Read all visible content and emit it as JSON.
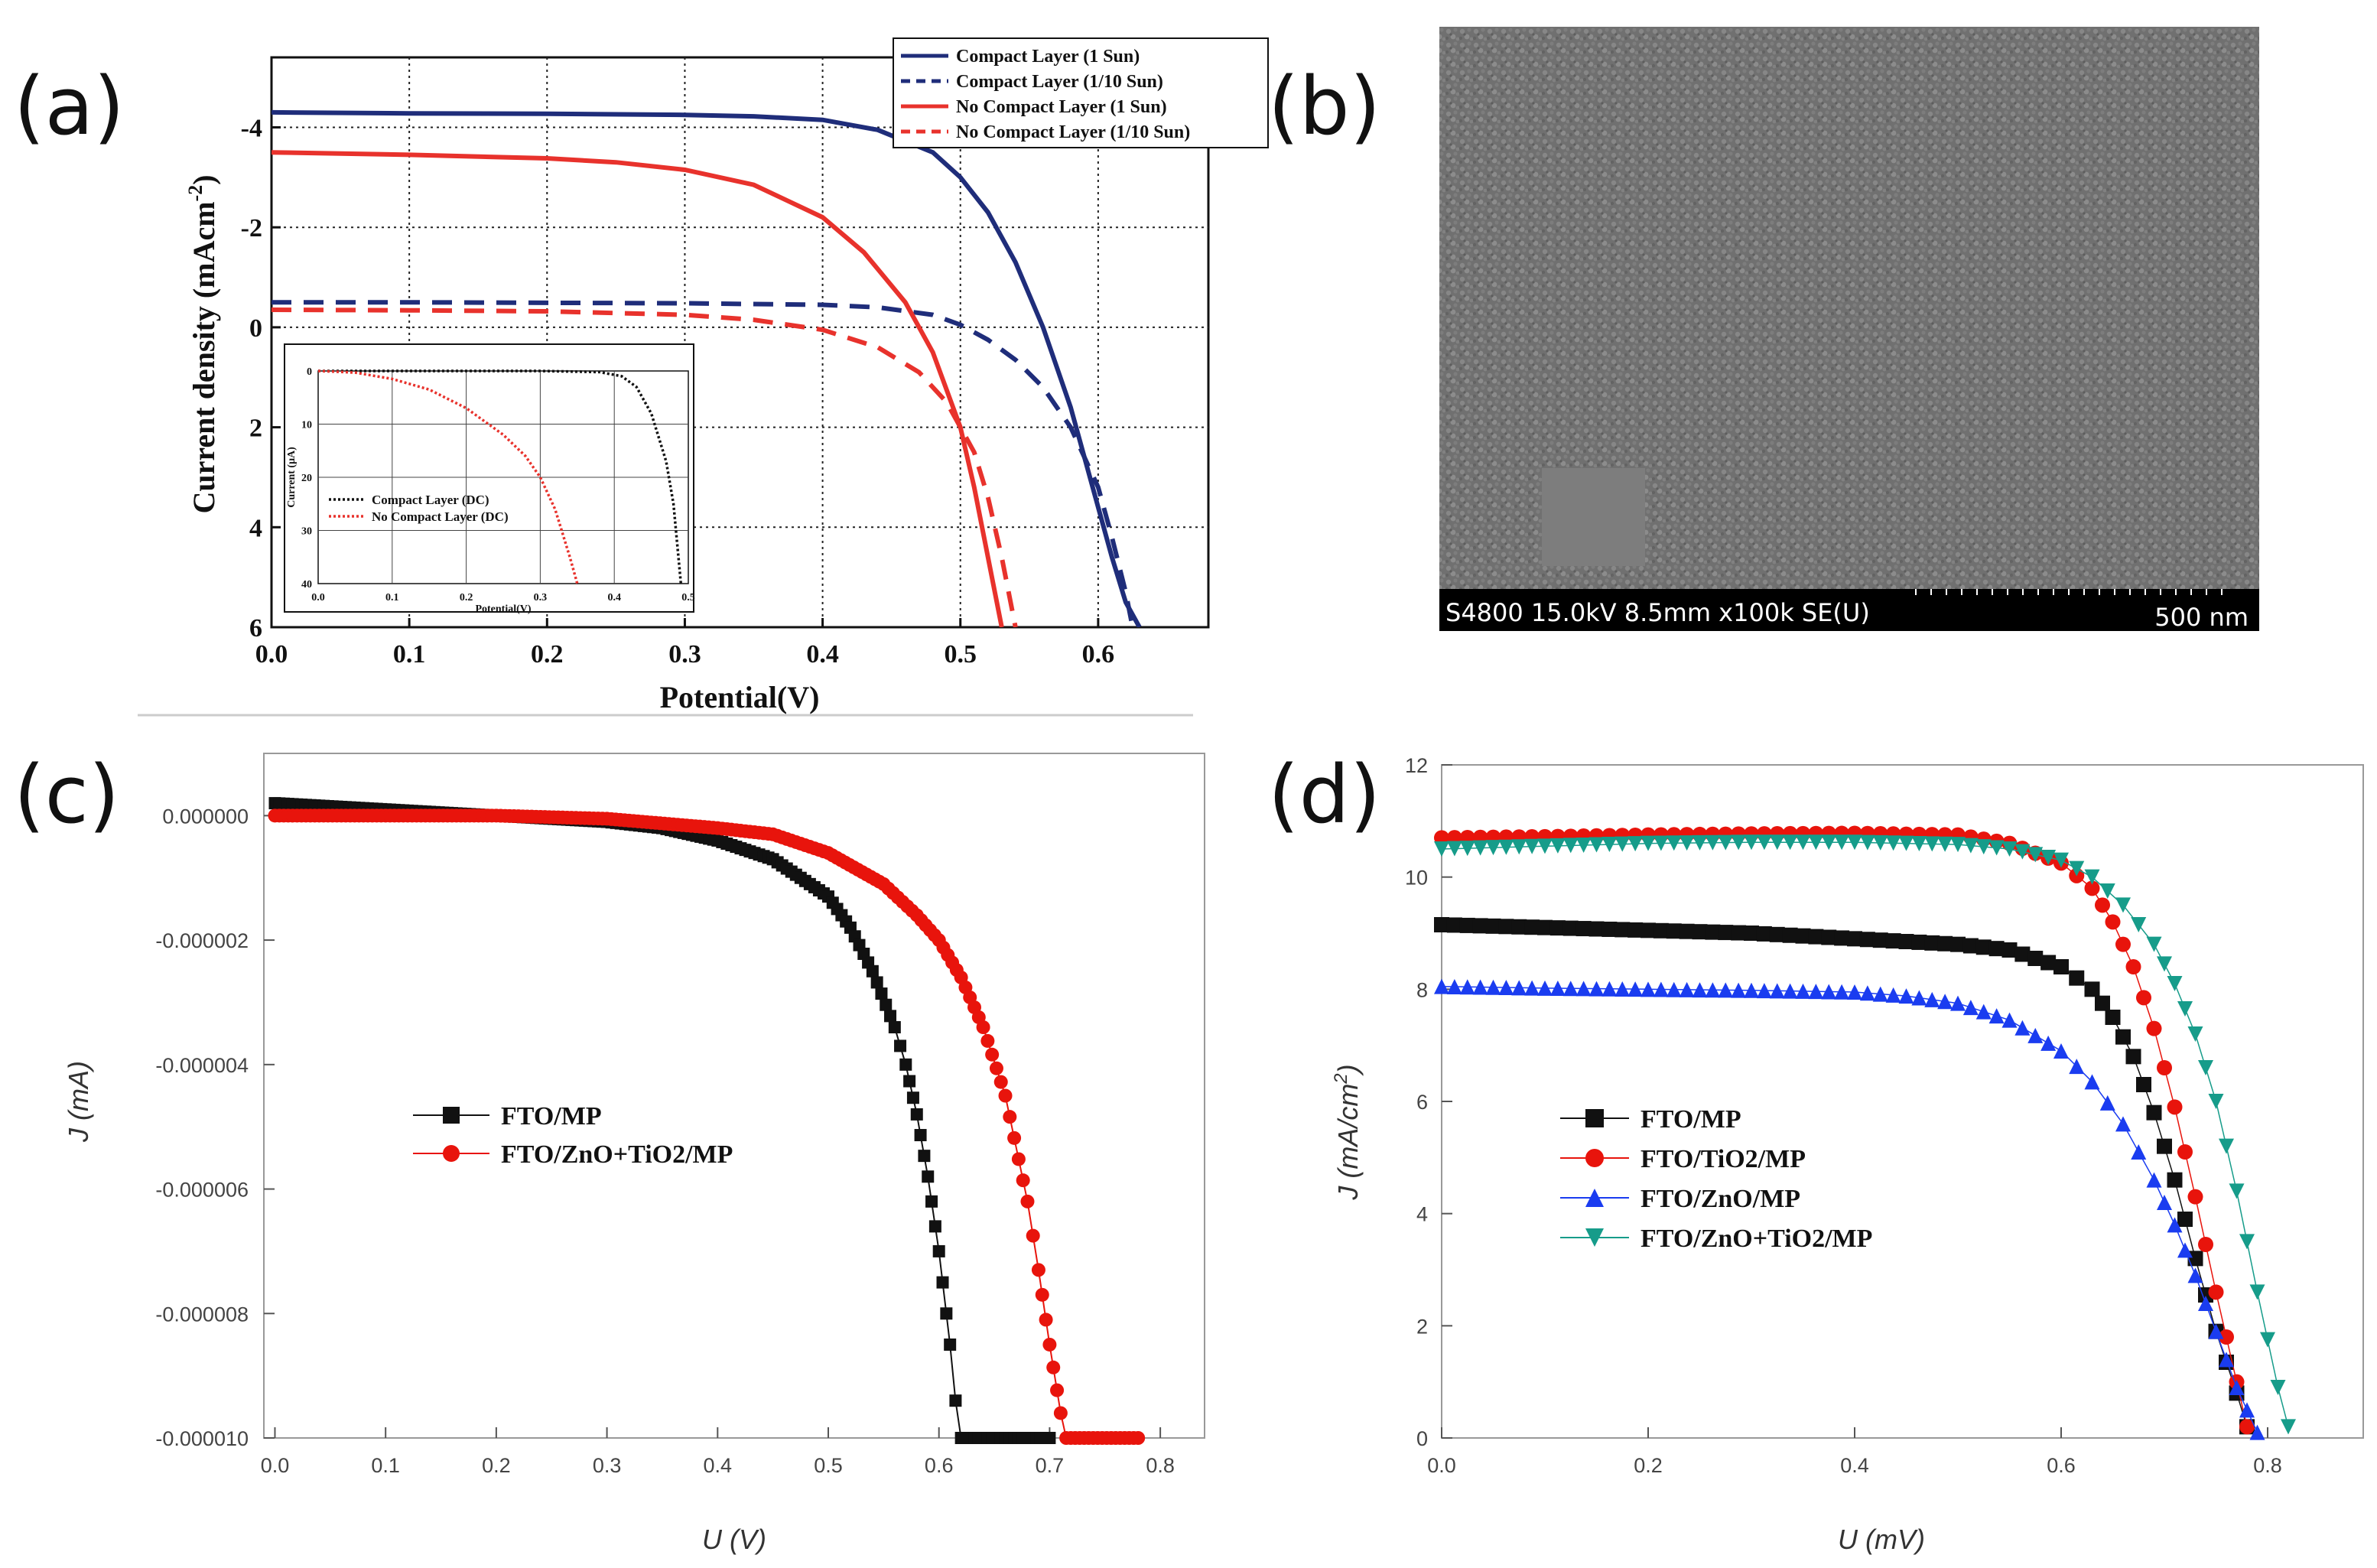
{
  "panels": {
    "a": "(a)",
    "b": "(b)",
    "c": "(c)",
    "d": "(d)"
  },
  "chart_data": [
    {
      "id": "a",
      "type": "line",
      "xlabel": "Potential(V)",
      "ylabel": "Current density (mAcm",
      "ylabel_sup": "-2",
      "ylabel_close": ")",
      "xlim": [
        0.0,
        0.68
      ],
      "ylim": [
        -5.4,
        6.0
      ],
      "y_inverted": true,
      "xticks": [
        0.0,
        0.1,
        0.2,
        0.3,
        0.4,
        0.5,
        0.6
      ],
      "xtick_labels": [
        "0.0",
        "0.1",
        "0.2",
        "0.3",
        "0.4",
        "0.5",
        "0.6"
      ],
      "yticks": [
        -4,
        -2,
        0,
        2,
        4,
        6
      ],
      "ytick_labels": [
        "-4",
        "-2",
        "0",
        "2",
        "4",
        "6"
      ],
      "grid": "dotted",
      "legend_position": "top-right",
      "series": [
        {
          "name": "Compact Layer (1 Sun)",
          "color": "#1f2d7a",
          "dash": "solid",
          "x": [
            0.0,
            0.1,
            0.2,
            0.3,
            0.35,
            0.4,
            0.44,
            0.48,
            0.5,
            0.52,
            0.54,
            0.56,
            0.58,
            0.6,
            0.61,
            0.62,
            0.63
          ],
          "y": [
            -4.3,
            -4.28,
            -4.27,
            -4.25,
            -4.22,
            -4.15,
            -3.95,
            -3.5,
            -3.0,
            -2.3,
            -1.3,
            0.0,
            1.6,
            3.6,
            4.6,
            5.5,
            6.0
          ]
        },
        {
          "name": "Compact Layer (1/10 Sun)",
          "color": "#1f2d7a",
          "dash": "dashed",
          "x": [
            0.0,
            0.1,
            0.2,
            0.3,
            0.4,
            0.44,
            0.48,
            0.5,
            0.52,
            0.54,
            0.56,
            0.58,
            0.6,
            0.61,
            0.62,
            0.625
          ],
          "y": [
            -0.5,
            -0.5,
            -0.49,
            -0.48,
            -0.45,
            -0.4,
            -0.25,
            -0.05,
            0.25,
            0.65,
            1.2,
            2.0,
            3.2,
            4.2,
            5.3,
            6.0
          ]
        },
        {
          "name": "No Compact Layer (1 Sun)",
          "color": "#e8322c",
          "dash": "solid",
          "x": [
            0.0,
            0.1,
            0.2,
            0.25,
            0.3,
            0.35,
            0.4,
            0.43,
            0.46,
            0.48,
            0.5,
            0.51,
            0.52,
            0.53
          ],
          "y": [
            -3.5,
            -3.45,
            -3.38,
            -3.3,
            -3.15,
            -2.85,
            -2.2,
            -1.5,
            -0.5,
            0.5,
            2.0,
            3.2,
            4.6,
            6.0
          ]
        },
        {
          "name": "No Compact Layer (1/10 Sun)",
          "color": "#e8322c",
          "dash": "dashed",
          "x": [
            0.0,
            0.1,
            0.2,
            0.3,
            0.35,
            0.4,
            0.44,
            0.47,
            0.49,
            0.51,
            0.52,
            0.53,
            0.54
          ],
          "y": [
            -0.35,
            -0.34,
            -0.32,
            -0.25,
            -0.15,
            0.05,
            0.4,
            0.9,
            1.5,
            2.5,
            3.4,
            4.6,
            6.0
          ]
        }
      ],
      "inset": {
        "xlabel": "Potential(V)",
        "ylabel": "Current (μA)",
        "xlim": [
          0.0,
          0.5
        ],
        "ylim": [
          0,
          40
        ],
        "xticks": [
          0.0,
          0.1,
          0.2,
          0.3,
          0.4,
          0.5
        ],
        "xtick_labels": [
          "0.0",
          "0.1",
          "0.2",
          "0.3",
          "0.4",
          "0.5"
        ],
        "yticks": [
          0,
          10,
          20,
          30,
          40
        ],
        "ytick_labels": [
          "0",
          "10",
          "20",
          "30",
          "40"
        ],
        "series": [
          {
            "name": "Compact Layer (DC)",
            "color": "#111111",
            "x": [
              0.0,
              0.1,
              0.2,
              0.3,
              0.38,
              0.41,
              0.43,
              0.45,
              0.47,
              0.48,
              0.49
            ],
            "y": [
              0.0,
              0.0,
              0.0,
              0.0,
              0.2,
              1.0,
              3.0,
              8.0,
              17.0,
              25.0,
              40.0
            ]
          },
          {
            "name": "No Compact Layer (DC)",
            "color": "#e8322c",
            "x": [
              0.0,
              0.05,
              0.1,
              0.15,
              0.2,
              0.25,
              0.28,
              0.3,
              0.32,
              0.34,
              0.35
            ],
            "y": [
              0.0,
              0.3,
              1.5,
              3.5,
              7.0,
              12.0,
              16.0,
              20.0,
              26.0,
              35.0,
              40.0
            ]
          }
        ]
      }
    },
    {
      "id": "b",
      "type": "image",
      "caption": "S4800 15.0kV 8.5mm x100k SE(U)",
      "scale_label": "500 nm"
    },
    {
      "id": "c",
      "type": "scatter",
      "xlabel": "U (V)",
      "ylabel": "J (mA)",
      "xlim": [
        -0.01,
        0.84
      ],
      "ylim": [
        -1e-05,
        1e-06
      ],
      "xticks": [
        0.0,
        0.1,
        0.2,
        0.3,
        0.4,
        0.5,
        0.6,
        0.7,
        0.8
      ],
      "xtick_labels": [
        "0.0",
        "0.1",
        "0.2",
        "0.3",
        "0.4",
        "0.5",
        "0.6",
        "0.7",
        "0.8"
      ],
      "yticks": [
        0.0,
        -2e-06,
        -4e-06,
        -6e-06,
        -8e-06,
        -1e-05
      ],
      "ytick_labels": [
        "0.000000",
        "-0.000002",
        "-0.000004",
        "-0.000006",
        "-0.000008",
        "-0.000010"
      ],
      "legend_position": "center-left",
      "series": [
        {
          "name": "FTO/MP",
          "color": "#111111",
          "marker": "square",
          "x": [
            0.0,
            0.1,
            0.2,
            0.3,
            0.35,
            0.4,
            0.45,
            0.5,
            0.52,
            0.54,
            0.56,
            0.57,
            0.58,
            0.59,
            0.6,
            0.61,
            0.615,
            0.62,
            0.7
          ],
          "y": [
            2e-07,
            1e-07,
            0.0,
            -1e-07,
            -2e-07,
            -4e-07,
            -7e-07,
            -1.3e-06,
            -1.8e-06,
            -2.5e-06,
            -3.4e-06,
            -4e-06,
            -4.8e-06,
            -5.8e-06,
            -7e-06,
            -8.5e-06,
            -9.4e-06,
            -1e-05,
            -1e-05
          ]
        },
        {
          "name": "FTO/ZnO+TiO2/MP",
          "color": "#e8140c",
          "marker": "circle",
          "x": [
            0.0,
            0.1,
            0.2,
            0.3,
            0.4,
            0.45,
            0.5,
            0.55,
            0.58,
            0.6,
            0.62,
            0.64,
            0.66,
            0.68,
            0.69,
            0.7,
            0.71,
            0.715,
            0.78
          ],
          "y": [
            0.0,
            0.0,
            0.0,
            -5e-08,
            -2e-07,
            -3e-07,
            -6e-07,
            -1.1e-06,
            -1.6e-06,
            -2e-06,
            -2.6e-06,
            -3.4e-06,
            -4.5e-06,
            -6.2e-06,
            -7.3e-06,
            -8.5e-06,
            -9.6e-06,
            -1e-05,
            -1e-05
          ]
        }
      ]
    },
    {
      "id": "d",
      "type": "scatter",
      "xlabel": "U (mV)",
      "ylabel": "J (mA/cm",
      "ylabel_sup": "2",
      "ylabel_close": ")",
      "xlim": [
        -0.0,
        0.9
      ],
      "ylim": [
        0,
        12
      ],
      "xticks": [
        0.0,
        0.2,
        0.4,
        0.6,
        0.8
      ],
      "xtick_labels": [
        "0.0",
        "0.2",
        "0.4",
        "0.6",
        "0.8"
      ],
      "yticks": [
        0,
        2,
        4,
        6,
        8,
        10,
        12
      ],
      "ytick_labels": [
        "0",
        "2",
        "4",
        "6",
        "8",
        "10",
        "12"
      ],
      "legend_position": "center-left",
      "series": [
        {
          "name": "FTO/MP",
          "color": "#111111",
          "marker": "square",
          "x": [
            0.0,
            0.1,
            0.2,
            0.3,
            0.4,
            0.5,
            0.55,
            0.6,
            0.63,
            0.65,
            0.67,
            0.69,
            0.71,
            0.73,
            0.75,
            0.77,
            0.78
          ],
          "y": [
            9.15,
            9.1,
            9.05,
            9.0,
            8.9,
            8.8,
            8.7,
            8.4,
            8.0,
            7.5,
            6.8,
            5.8,
            4.6,
            3.2,
            1.9,
            0.8,
            0.2
          ]
        },
        {
          "name": "FTO/TiO2/MP",
          "color": "#e8140c",
          "marker": "circle",
          "x": [
            0.0,
            0.1,
            0.2,
            0.3,
            0.4,
            0.5,
            0.55,
            0.6,
            0.63,
            0.65,
            0.67,
            0.69,
            0.71,
            0.73,
            0.75,
            0.77,
            0.78
          ],
          "y": [
            10.7,
            10.72,
            10.75,
            10.77,
            10.78,
            10.75,
            10.6,
            10.25,
            9.8,
            9.2,
            8.4,
            7.3,
            5.9,
            4.3,
            2.6,
            1.0,
            0.2
          ]
        },
        {
          "name": "FTO/ZnO/MP",
          "color": "#1a3cf0",
          "marker": "triangle",
          "x": [
            0.0,
            0.1,
            0.2,
            0.3,
            0.4,
            0.45,
            0.5,
            0.55,
            0.6,
            0.63,
            0.66,
            0.69,
            0.71,
            0.73,
            0.75,
            0.77,
            0.79
          ],
          "y": [
            8.05,
            8.02,
            8.0,
            7.98,
            7.95,
            7.88,
            7.75,
            7.45,
            6.9,
            6.35,
            5.6,
            4.6,
            3.8,
            2.9,
            1.9,
            0.9,
            0.1
          ]
        },
        {
          "name": "FTO/ZnO+TiO2/MP",
          "color": "#169c8a",
          "marker": "triangle-down",
          "x": [
            0.0,
            0.1,
            0.2,
            0.3,
            0.4,
            0.5,
            0.55,
            0.6,
            0.63,
            0.66,
            0.69,
            0.71,
            0.73,
            0.75,
            0.77,
            0.79,
            0.81,
            0.82
          ],
          "y": [
            10.5,
            10.55,
            10.6,
            10.62,
            10.62,
            10.58,
            10.5,
            10.3,
            10.0,
            9.5,
            8.8,
            8.1,
            7.2,
            6.0,
            4.4,
            2.6,
            0.9,
            0.2
          ]
        }
      ]
    }
  ]
}
